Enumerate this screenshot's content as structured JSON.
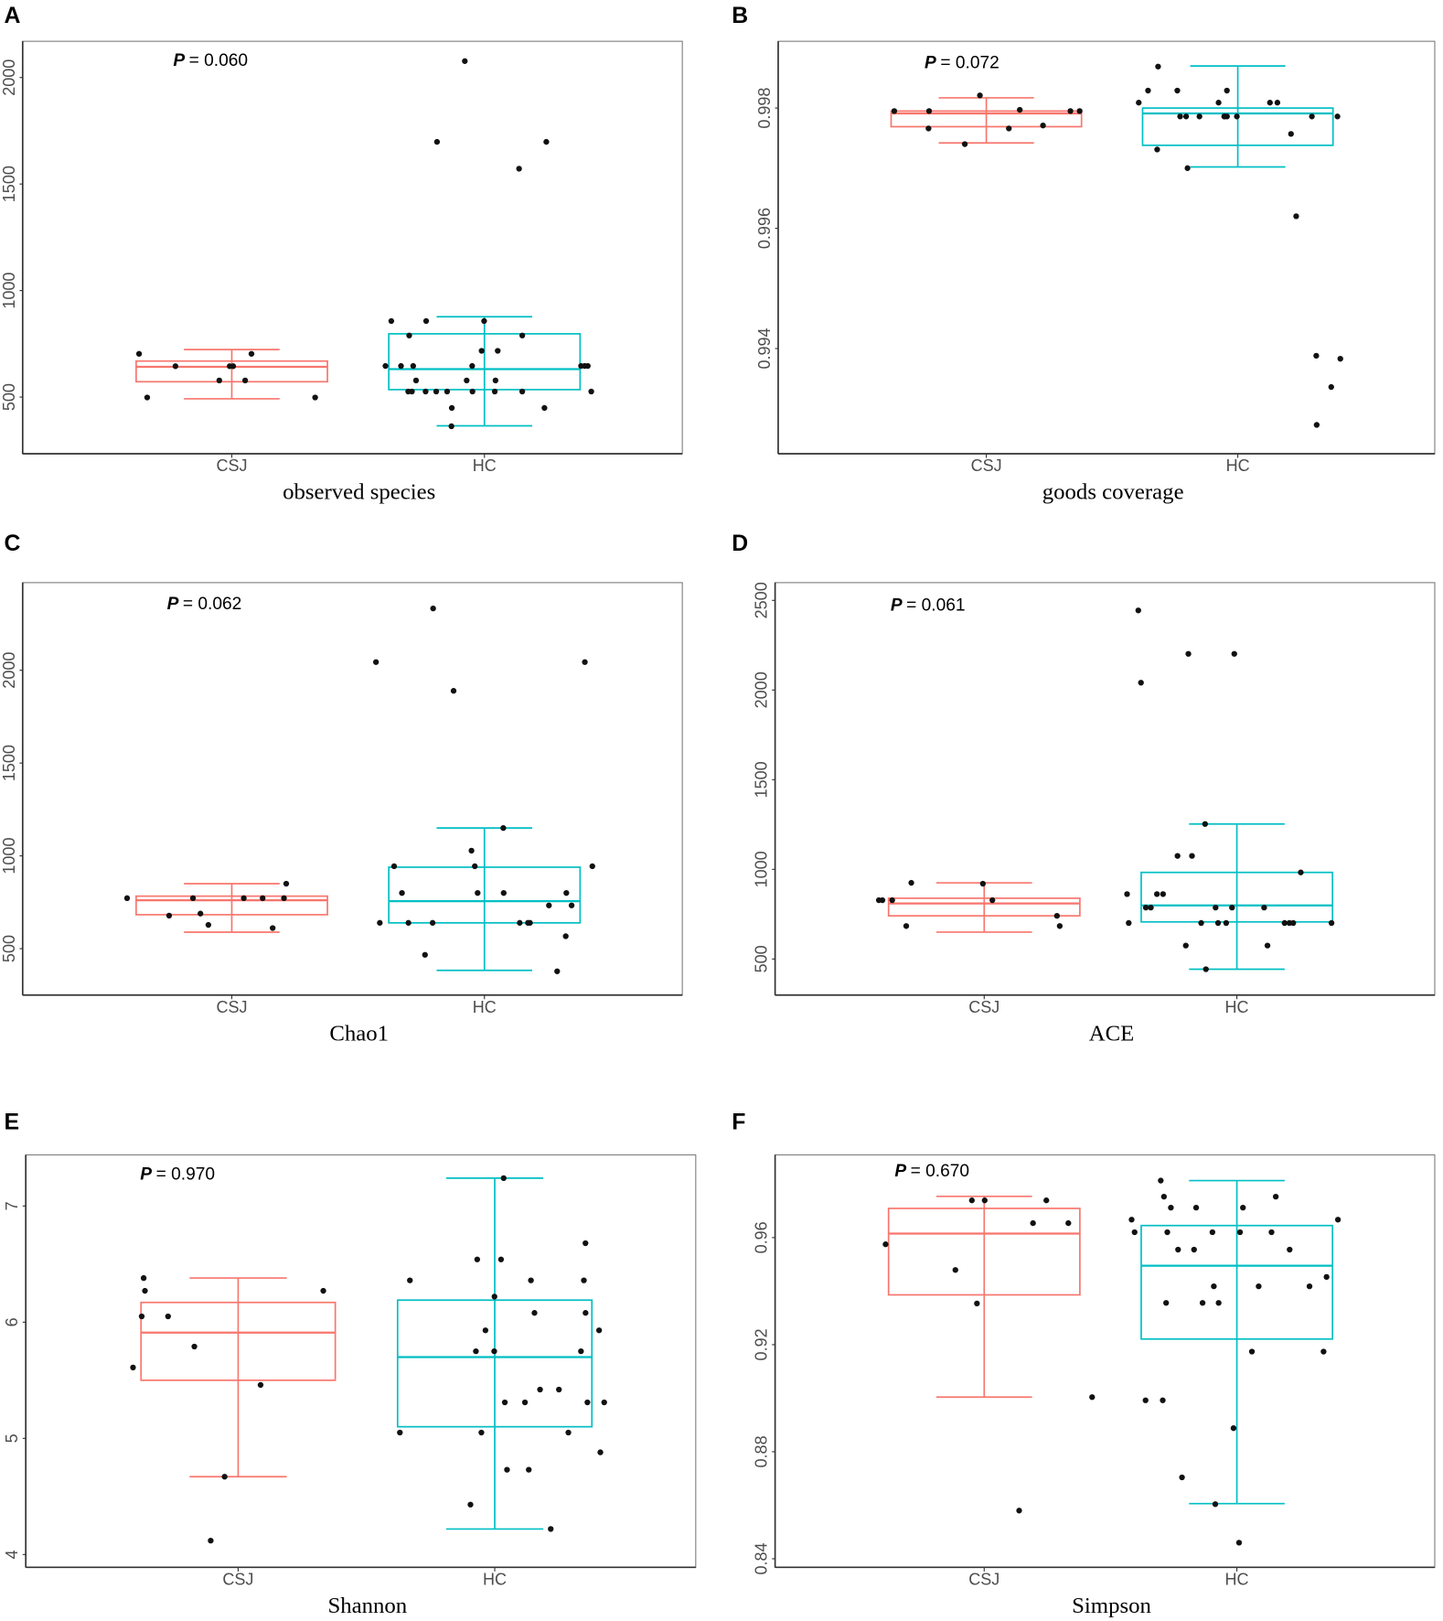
{
  "colors": {
    "CSJ": "#F8766D",
    "HC": "#00BFC4",
    "point": "#111111"
  },
  "chart_data": [
    {
      "type": "box",
      "panel": "A",
      "xlabel": "observed species",
      "p_prefix": "P",
      "p_value": "= 0.060",
      "ylim": [
        234,
        2170
      ],
      "yticks": [
        500,
        1000,
        1500,
        2000
      ],
      "yticklabels": [
        "500",
        "1000",
        "1500",
        "2000"
      ],
      "grid": false,
      "categories": [
        "CSJ",
        "HC"
      ],
      "groups": [
        {
          "name": "CSJ",
          "whisker_low": 492,
          "q1": 572,
          "median": 642,
          "q3": 669,
          "whisker_high": 723,
          "points": [
            645,
            578,
            498,
            645,
            578,
            645,
            703,
            498,
            703
          ]
        },
        {
          "name": "HC",
          "whisker_low": 365,
          "q1": 535,
          "median": 631,
          "q3": 797,
          "whisker_high": 877,
          "points": [
            2077,
            1698,
            1698,
            1572,
            857,
            857,
            857,
            789,
            789,
            717,
            717,
            646,
            646,
            646,
            646,
            646,
            646,
            646,
            578,
            578,
            578,
            526,
            526,
            526,
            526,
            526,
            526,
            526,
            526,
            526,
            449,
            449,
            363
          ]
        }
      ]
    },
    {
      "type": "box",
      "panel": "B",
      "xlabel": "goods coverage",
      "p_prefix": "P",
      "p_value": "= 0.072",
      "ylim": [
        0.99225,
        0.99911
      ],
      "yticks": [
        0.994,
        0.996,
        0.998
      ],
      "yticklabels": [
        "0.994",
        "0.996",
        "0.998"
      ],
      "grid": false,
      "categories": [
        "CSJ",
        "HC"
      ],
      "groups": [
        {
          "name": "CSJ",
          "whisker_low": 0.99742,
          "q1": 0.99769,
          "median": 0.99791,
          "q3": 0.99795,
          "whisker_high": 0.99817,
          "points": [
            0.99795,
            0.99795,
            0.99795,
            0.99795,
            0.99821,
            0.99766,
            0.99766,
            0.9974,
            0.99771,
            0.99797
          ]
        },
        {
          "name": "HC",
          "whisker_low": 0.99702,
          "q1": 0.99738,
          "median": 0.99791,
          "q3": 0.998,
          "whisker_high": 0.9987,
          "points": [
            0.99869,
            0.99829,
            0.99829,
            0.99829,
            0.99809,
            0.99809,
            0.99809,
            0.99809,
            0.99786,
            0.99786,
            0.99786,
            0.99786,
            0.99786,
            0.99786,
            0.99786,
            0.99786,
            0.99786,
            0.99786,
            0.99757,
            0.99731,
            0.997,
            0.9962,
            0.99388,
            0.99383,
            0.99336,
            0.99273
          ]
        }
      ]
    },
    {
      "type": "box",
      "panel": "C",
      "xlabel": "Chao1",
      "p_prefix": "P",
      "p_value": "= 0.062",
      "ylim": [
        250,
        2472
      ],
      "yticks": [
        500,
        1000,
        1500,
        2000
      ],
      "yticklabels": [
        "500",
        "1000",
        "1500",
        "2000"
      ],
      "grid": false,
      "categories": [
        "CSJ",
        "HC"
      ],
      "groups": [
        {
          "name": "CSJ",
          "whisker_low": 589,
          "q1": 683,
          "median": 761,
          "q3": 783,
          "whisker_high": 850,
          "points": [
            850,
            772,
            772,
            772,
            772,
            689,
            678,
            628,
            611,
            772
          ]
        },
        {
          "name": "HC",
          "whisker_low": 383,
          "q1": 639,
          "median": 756,
          "q3": 939,
          "whisker_high": 1150,
          "points": [
            2333,
            2044,
            2044,
            1889,
            1150,
            1028,
            944,
            944,
            944,
            800,
            800,
            800,
            800,
            733,
            733,
            639,
            639,
            639,
            639,
            639,
            639,
            567,
            467,
            378
          ]
        }
      ]
    },
    {
      "type": "box",
      "panel": "D",
      "xlabel": "ACE",
      "p_prefix": "P",
      "p_value": "= 0.061",
      "ylim": [
        299,
        2599
      ],
      "yticks": [
        500,
        1000,
        1500,
        2000,
        2500
      ],
      "yticklabels": [
        "500",
        "1000",
        "1500",
        "2000",
        "2500"
      ],
      "grid": false,
      "categories": [
        "CSJ",
        "HC"
      ],
      "groups": [
        {
          "name": "CSJ",
          "whisker_low": 650,
          "q1": 741,
          "median": 810,
          "q3": 839,
          "whisker_high": 925,
          "points": [
            925,
            828,
            828,
            828,
            828,
            741,
            684,
            684,
            920
          ]
        },
        {
          "name": "HC",
          "whisker_low": 443,
          "q1": 707,
          "median": 799,
          "q3": 983,
          "whisker_high": 1253,
          "points": [
            2444,
            2202,
            2202,
            2041,
            1253,
            1075,
            1075,
            983,
            862,
            862,
            862,
            787,
            787,
            787,
            787,
            787,
            701,
            701,
            701,
            701,
            701,
            701,
            701,
            701,
            575,
            575,
            443
          ]
        }
      ]
    },
    {
      "type": "box",
      "panel": "E",
      "xlabel": "Shannon",
      "p_prefix": "P",
      "p_value": "= 0.970",
      "ylim": [
        3.89,
        7.44
      ],
      "yticks": [
        4,
        5,
        6,
        7
      ],
      "yticklabels": [
        "4",
        "5",
        "6",
        "7"
      ],
      "grid": false,
      "categories": [
        "CSJ",
        "HC"
      ],
      "groups": [
        {
          "name": "CSJ",
          "whisker_low": 4.67,
          "q1": 5.5,
          "median": 5.91,
          "q3": 6.17,
          "whisker_high": 6.38,
          "points": [
            6.38,
            6.27,
            6.27,
            6.05,
            6.05,
            5.79,
            5.61,
            5.46,
            4.67,
            4.12
          ]
        },
        {
          "name": "HC",
          "whisker_low": 4.22,
          "q1": 5.1,
          "median": 5.7,
          "q3": 6.19,
          "whisker_high": 7.24,
          "points": [
            7.24,
            6.68,
            6.54,
            6.54,
            6.36,
            6.36,
            6.36,
            6.22,
            6.08,
            6.08,
            5.93,
            5.93,
            5.75,
            5.75,
            5.75,
            5.42,
            5.42,
            5.31,
            5.31,
            5.31,
            5.31,
            5.05,
            5.05,
            5.05,
            4.88,
            4.73,
            4.73,
            4.43,
            4.22
          ]
        }
      ]
    },
    {
      "type": "box",
      "panel": "F",
      "xlabel": "Simpson",
      "p_prefix": "P",
      "p_value": "= 0.670",
      "ylim": [
        0.8368,
        0.9909
      ],
      "yticks": [
        0.84,
        0.88,
        0.92,
        0.96
      ],
      "yticklabels": [
        "0.84",
        "0.88",
        "0.92",
        "0.96"
      ],
      "grid": false,
      "categories": [
        "CSJ",
        "HC"
      ],
      "groups": [
        {
          "name": "CSJ",
          "whisker_low": 0.9004,
          "q1": 0.9386,
          "median": 0.9615,
          "q3": 0.9709,
          "whisker_high": 0.9754,
          "points": [
            0.9739,
            0.9739,
            0.9739,
            0.9654,
            0.9654,
            0.9575,
            0.9479,
            0.9354,
            0.9004,
            0.858
          ]
        },
        {
          "name": "HC",
          "whisker_low": 0.8606,
          "q1": 0.9221,
          "median": 0.9495,
          "q3": 0.9645,
          "whisker_high": 0.9813,
          "points": [
            0.9813,
            0.9753,
            0.9753,
            0.9712,
            0.9712,
            0.9712,
            0.9667,
            0.9667,
            0.962,
            0.962,
            0.962,
            0.962,
            0.962,
            0.9555,
            0.9555,
            0.9555,
            0.9453,
            0.9418,
            0.9418,
            0.9418,
            0.9356,
            0.9356,
            0.9356,
            0.9174,
            0.9174,
            0.8992,
            0.8992,
            0.8888,
            0.8704,
            0.8604,
            0.846
          ]
        }
      ]
    }
  ]
}
